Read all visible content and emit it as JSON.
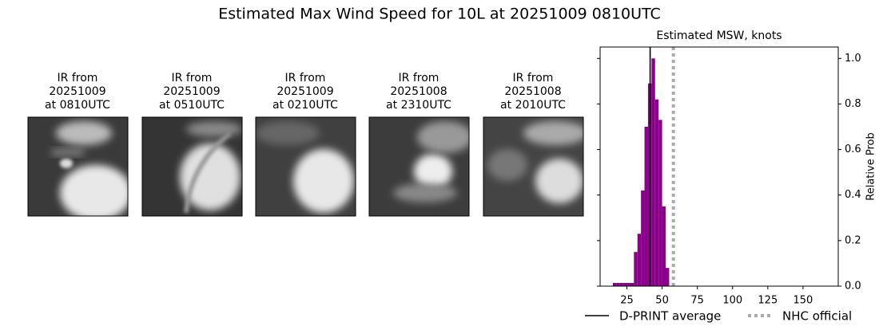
{
  "title": "Estimated Max Wind Speed for 10L at 20251009 0810UTC",
  "panels": [
    {
      "lines": [
        "IR from",
        "20251009",
        "at 0810UTC"
      ]
    },
    {
      "lines": [
        "IR from",
        "20251009",
        "at 0510UTC"
      ]
    },
    {
      "lines": [
        "IR from",
        "20251009",
        "at 0210UTC"
      ]
    },
    {
      "lines": [
        "IR from",
        "20251008",
        "at 2310UTC"
      ]
    },
    {
      "lines": [
        "IR from",
        "20251008",
        "at 2010UTC"
      ]
    }
  ],
  "chart_data": {
    "type": "histogram",
    "title": "Estimated MSW, knots",
    "ylabel": "Relative Prob",
    "bins": [
      15,
      17.5,
      20,
      22.5,
      25,
      27.5,
      30,
      32.5,
      35,
      37.5,
      40,
      42.5,
      45,
      47.5,
      50,
      52.5,
      55
    ],
    "values": [
      0.014,
      0.014,
      0.014,
      0.014,
      0.014,
      0.014,
      0.15,
      0.23,
      0.42,
      0.7,
      0.89,
      1.0,
      0.82,
      0.73,
      0.35,
      0.08
    ],
    "color": "#8b008b",
    "xlim": [
      6,
      175
    ],
    "ylim": [
      0,
      1.05
    ],
    "xticks": [
      25,
      50,
      75,
      100,
      125,
      150
    ],
    "yticks": [
      {
        "value": 0,
        "label": "0.0"
      },
      {
        "value": 0.2,
        "label": "0.2"
      },
      {
        "value": 0.4,
        "label": "0.4"
      },
      {
        "value": 0.6,
        "label": "0.6"
      },
      {
        "value": 0.8,
        "label": "0.8"
      },
      {
        "value": 1.0,
        "label": "1.0"
      }
    ],
    "lines": [
      {
        "name": "D-PRINT average",
        "value": 41.5,
        "color": "#000000",
        "style": "solid"
      },
      {
        "name": "NHC official",
        "value": 58,
        "color": "#a9a9a9",
        "style": "dotted"
      }
    ]
  }
}
